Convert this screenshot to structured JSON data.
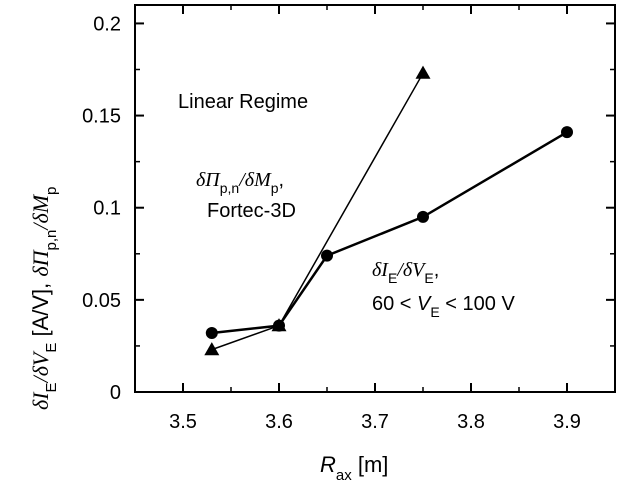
{
  "chart_data": {
    "type": "line",
    "xlabel": {
      "main": "R",
      "sub": "ax",
      "unit": " [m]"
    },
    "ylabel": {
      "p1": "δI",
      "p1_sub": "E",
      "p2": "/δV",
      "p2_sub": "E",
      "p3": " [A/V], ",
      "p4": "δΠ",
      "p4_sub": "p,n",
      "p5": "/δM",
      "p5_sub": "p"
    },
    "xlim": [
      3.45,
      3.95
    ],
    "ylim": [
      0,
      0.21
    ],
    "x_ticks": [
      3.5,
      3.6,
      3.7,
      3.8,
      3.9
    ],
    "x_tick_labels": [
      "3.5",
      "3.6",
      "3.7",
      "3.8",
      "3.9"
    ],
    "y_ticks": [
      0,
      0.05,
      0.1,
      0.15,
      0.2
    ],
    "y_tick_labels": [
      "0",
      "0.05",
      "0.1",
      "0.15",
      "0.2"
    ],
    "grid": false,
    "series": [
      {
        "marker": "circle",
        "x": [
          3.53,
          3.6,
          3.65,
          3.75,
          3.9
        ],
        "y": [
          0.032,
          0.036,
          0.074,
          0.095,
          0.141
        ]
      },
      {
        "marker": "triangle",
        "x": [
          3.53,
          3.6,
          3.75
        ],
        "y": [
          0.023,
          0.036,
          0.173
        ]
      }
    ],
    "annotations": {
      "regime": "Linear Regime",
      "fortec_1": "δΠ",
      "fortec_1_sub": "p,n",
      "fortec_2": "/δM",
      "fortec_2_sub": "p",
      "fortec_3": ",",
      "fortec_label": "Fortec-3D",
      "exp_1": "δI",
      "exp_1_sub": "E",
      "exp_2": "/δV",
      "exp_2_sub": "E",
      "exp_3": ",",
      "range_1": "60 < ",
      "range_2": "V",
      "range_2_sub": "E",
      "range_3": " < 100 V"
    }
  }
}
